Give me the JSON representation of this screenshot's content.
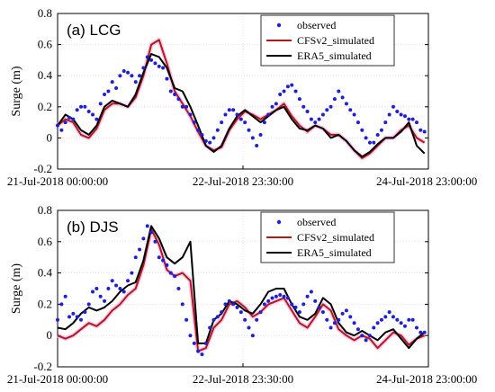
{
  "chart_data": [
    {
      "type": "line",
      "title": "(a) LCG",
      "ylabel": "Surge (m)",
      "ylim": [
        -0.2,
        0.8
      ],
      "yticks": [
        "-0.2",
        "0",
        "0.2",
        "0.4",
        "0.6",
        "0.8"
      ],
      "xticks": [
        "21-Jul-2018 00:00:00",
        "22-Jul-2018 23:30:00",
        "24-Jul-2018 23:00:00"
      ],
      "xlim_hours": [
        0,
        95
      ],
      "grid": true,
      "legend_position": "top-right",
      "series": [
        {
          "name": "observed",
          "style": "dots",
          "color": "#1f1fd6",
          "x": [
            0,
            1,
            2,
            3,
            4,
            5,
            6,
            7,
            8,
            9,
            10,
            11,
            12,
            13,
            14,
            15,
            16,
            17,
            18,
            19,
            20,
            21,
            22,
            23,
            24,
            25,
            26,
            27,
            28,
            29,
            30,
            31,
            32,
            33,
            34,
            35,
            36,
            37,
            38,
            39,
            40,
            41,
            42,
            43,
            44,
            45,
            46,
            47,
            48,
            49,
            50,
            51,
            52,
            53,
            54,
            55,
            56,
            57,
            58,
            59,
            60,
            61,
            62,
            63,
            64,
            65,
            66,
            67,
            68,
            69,
            70,
            71,
            72,
            73,
            74,
            75,
            76,
            77,
            78,
            79,
            80,
            81,
            82,
            83,
            84,
            85,
            86,
            87,
            88,
            89,
            90,
            91,
            92,
            93,
            94
          ],
          "y": [
            0.08,
            0.05,
            0.1,
            0.13,
            0.12,
            0.18,
            0.2,
            0.2,
            0.17,
            0.15,
            0.12,
            0.22,
            0.28,
            0.3,
            0.36,
            0.32,
            0.4,
            0.43,
            0.42,
            0.4,
            0.36,
            0.4,
            0.45,
            0.52,
            0.5,
            0.48,
            0.46,
            0.45,
            0.38,
            0.3,
            0.28,
            0.25,
            0.2,
            0.2,
            0.15,
            0.1,
            0.05,
            0.02,
            -0.02,
            -0.03,
            0.0,
            0.05,
            0.1,
            0.15,
            0.18,
            0.18,
            0.15,
            0.12,
            0.1,
            0.05,
            0.0,
            -0.05,
            0.02,
            0.1,
            0.15,
            0.2,
            0.22,
            0.28,
            0.3,
            0.33,
            0.34,
            0.3,
            0.25,
            0.2,
            0.17,
            0.12,
            0.1,
            0.12,
            0.15,
            0.18,
            0.2,
            0.25,
            0.3,
            0.26,
            0.22,
            0.18,
            0.15,
            0.1,
            0.05,
            0.0,
            -0.03,
            -0.03,
            0.02,
            0.05,
            0.1,
            0.15,
            0.2,
            0.17,
            0.15,
            0.14,
            0.12,
            0.12,
            0.1,
            0.05,
            0.04
          ]
        },
        {
          "name": "CFSv2_simulated",
          "style": "line",
          "color": "#b4191c",
          "x": [
            0,
            2,
            4,
            6,
            8,
            10,
            12,
            14,
            16,
            18,
            20,
            22,
            24,
            26,
            28,
            30,
            32,
            34,
            36,
            38,
            40,
            42,
            44,
            46,
            48,
            50,
            52,
            54,
            56,
            58,
            60,
            62,
            64,
            66,
            68,
            70,
            72,
            74,
            76,
            78,
            80,
            82,
            84,
            86,
            88,
            90,
            92,
            94
          ],
          "y": [
            0.08,
            0.12,
            0.1,
            0.02,
            0.0,
            0.06,
            0.18,
            0.22,
            0.22,
            0.2,
            0.26,
            0.4,
            0.6,
            0.63,
            0.48,
            0.3,
            0.22,
            0.14,
            0.04,
            -0.05,
            -0.08,
            -0.06,
            0.05,
            0.12,
            0.17,
            0.15,
            0.12,
            0.15,
            0.18,
            0.22,
            0.14,
            0.08,
            0.04,
            0.08,
            0.06,
            0.02,
            0.02,
            -0.02,
            -0.08,
            -0.13,
            -0.1,
            -0.05,
            0.0,
            0.0,
            0.05,
            0.08,
            0.0,
            -0.03
          ]
        },
        {
          "name": "ERA5_simulated",
          "style": "line",
          "color": "#000000",
          "x": [
            0,
            2,
            4,
            6,
            8,
            10,
            12,
            14,
            16,
            18,
            20,
            22,
            24,
            26,
            28,
            30,
            32,
            34,
            36,
            38,
            40,
            42,
            44,
            46,
            48,
            50,
            52,
            54,
            56,
            58,
            60,
            62,
            64,
            66,
            68,
            70,
            72,
            74,
            76,
            78,
            80,
            82,
            84,
            86,
            88,
            90,
            92,
            94
          ],
          "y": [
            0.08,
            0.15,
            0.12,
            0.05,
            0.02,
            0.08,
            0.2,
            0.24,
            0.22,
            0.2,
            0.28,
            0.42,
            0.54,
            0.52,
            0.45,
            0.32,
            0.3,
            0.2,
            0.08,
            -0.05,
            -0.09,
            -0.05,
            0.06,
            0.14,
            0.18,
            0.14,
            0.1,
            0.14,
            0.18,
            0.2,
            0.12,
            0.06,
            0.05,
            0.08,
            0.06,
            0.0,
            0.02,
            -0.02,
            -0.08,
            -0.12,
            -0.09,
            -0.04,
            0.0,
            0.0,
            0.04,
            0.1,
            -0.05,
            -0.1
          ]
        }
      ]
    },
    {
      "type": "line",
      "title": "(b) DJS",
      "ylabel": "Surge (m)",
      "ylim": [
        -0.2,
        0.8
      ],
      "yticks": [
        "-0.2",
        "0",
        "0.2",
        "0.4",
        "0.6",
        "0.8"
      ],
      "xticks": [
        "21-Jul-2018 00:00:00",
        "22-Jul-2018 23:30:00",
        "24-Jul-2018 23:00:00"
      ],
      "xlim_hours": [
        0,
        95
      ],
      "grid": true,
      "legend_position": "top-right",
      "series": [
        {
          "name": "observed",
          "style": "dots",
          "color": "#1f1fd6",
          "x": [
            0,
            1,
            2,
            3,
            4,
            5,
            6,
            7,
            8,
            9,
            10,
            11,
            12,
            13,
            14,
            15,
            16,
            17,
            18,
            19,
            20,
            21,
            22,
            23,
            24,
            25,
            26,
            27,
            28,
            29,
            30,
            31,
            32,
            33,
            34,
            35,
            36,
            37,
            38,
            39,
            40,
            41,
            42,
            43,
            44,
            45,
            46,
            47,
            48,
            49,
            50,
            51,
            52,
            53,
            54,
            55,
            56,
            57,
            58,
            59,
            60,
            61,
            62,
            63,
            64,
            65,
            66,
            67,
            68,
            69,
            70,
            71,
            72,
            73,
            74,
            75,
            76,
            77,
            78,
            79,
            80,
            81,
            82,
            83,
            84,
            85,
            86,
            87,
            88,
            89,
            90,
            91,
            92,
            93,
            94
          ],
          "y": [
            0.1,
            0.2,
            0.25,
            0.12,
            0.14,
            0.12,
            0.1,
            0.15,
            0.2,
            0.28,
            0.3,
            0.25,
            0.22,
            0.3,
            0.35,
            0.32,
            0.3,
            0.28,
            0.35,
            0.4,
            0.5,
            0.55,
            0.62,
            0.7,
            0.66,
            0.6,
            0.5,
            0.48,
            0.45,
            0.4,
            0.38,
            0.3,
            0.2,
            0.1,
            0.0,
            -0.05,
            -0.1,
            -0.12,
            -0.05,
            0.05,
            0.1,
            0.12,
            0.15,
            0.2,
            0.22,
            0.2,
            0.18,
            0.15,
            0.1,
            0.05,
            0.0,
            0.1,
            0.15,
            0.2,
            0.22,
            0.24,
            0.25,
            0.26,
            0.25,
            0.24,
            0.2,
            0.18,
            0.15,
            0.2,
            0.25,
            0.28,
            0.22,
            0.18,
            0.15,
            0.1,
            0.05,
            0.08,
            0.1,
            0.14,
            0.16,
            0.12,
            0.08,
            0.04,
            0.0,
            -0.03,
            0.0,
            0.05,
            0.08,
            0.1,
            0.12,
            0.15,
            0.12,
            0.1,
            0.08,
            0.06,
            0.1,
            0.1,
            0.05,
            0.02,
            0.02
          ]
        },
        {
          "name": "CFSv2_simulated",
          "style": "line",
          "color": "#b4191c",
          "x": [
            0,
            2,
            4,
            6,
            8,
            10,
            12,
            14,
            16,
            18,
            20,
            22,
            24,
            26,
            28,
            30,
            32,
            34,
            36,
            38,
            40,
            42,
            44,
            46,
            48,
            50,
            52,
            54,
            56,
            58,
            60,
            62,
            64,
            66,
            68,
            70,
            72,
            74,
            76,
            78,
            80,
            82,
            84,
            86,
            88,
            90,
            92,
            94
          ],
          "y": [
            0.0,
            -0.02,
            0.0,
            0.04,
            0.08,
            0.06,
            0.1,
            0.16,
            0.2,
            0.26,
            0.3,
            0.45,
            0.68,
            0.58,
            0.42,
            0.38,
            0.4,
            0.35,
            -0.1,
            -0.08,
            0.05,
            0.1,
            0.2,
            0.22,
            0.18,
            0.12,
            0.15,
            0.2,
            0.22,
            0.24,
            0.16,
            0.08,
            0.05,
            0.12,
            0.2,
            0.16,
            0.04,
            0.0,
            -0.03,
            0.0,
            -0.02,
            -0.08,
            -0.03,
            0.02,
            0.0,
            -0.06,
            -0.02,
            0.0
          ]
        },
        {
          "name": "ERA5_simulated",
          "style": "line",
          "color": "#000000",
          "x": [
            0,
            2,
            4,
            6,
            8,
            10,
            12,
            14,
            16,
            18,
            20,
            22,
            24,
            26,
            28,
            30,
            32,
            34,
            36,
            38,
            40,
            42,
            44,
            46,
            48,
            50,
            52,
            54,
            56,
            58,
            60,
            62,
            64,
            66,
            68,
            70,
            72,
            74,
            76,
            78,
            80,
            82,
            84,
            86,
            88,
            90,
            92,
            94
          ],
          "y": [
            0.05,
            0.04,
            0.08,
            0.14,
            0.18,
            0.16,
            0.18,
            0.22,
            0.28,
            0.32,
            0.34,
            0.48,
            0.7,
            0.62,
            0.5,
            0.46,
            0.5,
            0.6,
            -0.05,
            -0.05,
            0.1,
            0.14,
            0.22,
            0.2,
            0.16,
            0.14,
            0.2,
            0.28,
            0.3,
            0.3,
            0.2,
            0.12,
            0.1,
            0.14,
            0.24,
            0.2,
            0.08,
            0.02,
            0.0,
            0.03,
            0.0,
            -0.03,
            0.02,
            0.04,
            -0.02,
            -0.08,
            -0.02,
            0.02
          ]
        }
      ]
    }
  ]
}
